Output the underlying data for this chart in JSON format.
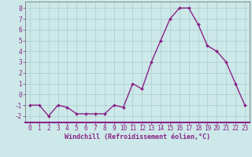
{
  "x": [
    0,
    1,
    2,
    3,
    4,
    5,
    6,
    7,
    8,
    9,
    10,
    11,
    12,
    13,
    14,
    15,
    16,
    17,
    18,
    19,
    20,
    21,
    22,
    23
  ],
  "y": [
    -1,
    -1,
    -2,
    -1,
    -1.2,
    -1.8,
    -1.8,
    -1.8,
    -1.8,
    -1,
    -1.2,
    1,
    0.5,
    3,
    5,
    7,
    8,
    8,
    6.5,
    4.5,
    4,
    3,
    1,
    -1
  ],
  "line_color": "#882288",
  "marker": "D",
  "marker_size": 2,
  "bg_color": "#cce8e8",
  "grid_color": "#aacccc",
  "xlabel": "Windchill (Refroidissement éolien,°C)",
  "xlabel_fontsize": 6,
  "ylabel_ticks": [
    -2,
    -1,
    0,
    1,
    2,
    3,
    4,
    5,
    6,
    7,
    8
  ],
  "xlim": [
    -0.5,
    23.5
  ],
  "ylim": [
    -2.6,
    8.6
  ],
  "tick_fontsize": 5.5,
  "linewidth": 1.0,
  "spine_color": "#666666"
}
